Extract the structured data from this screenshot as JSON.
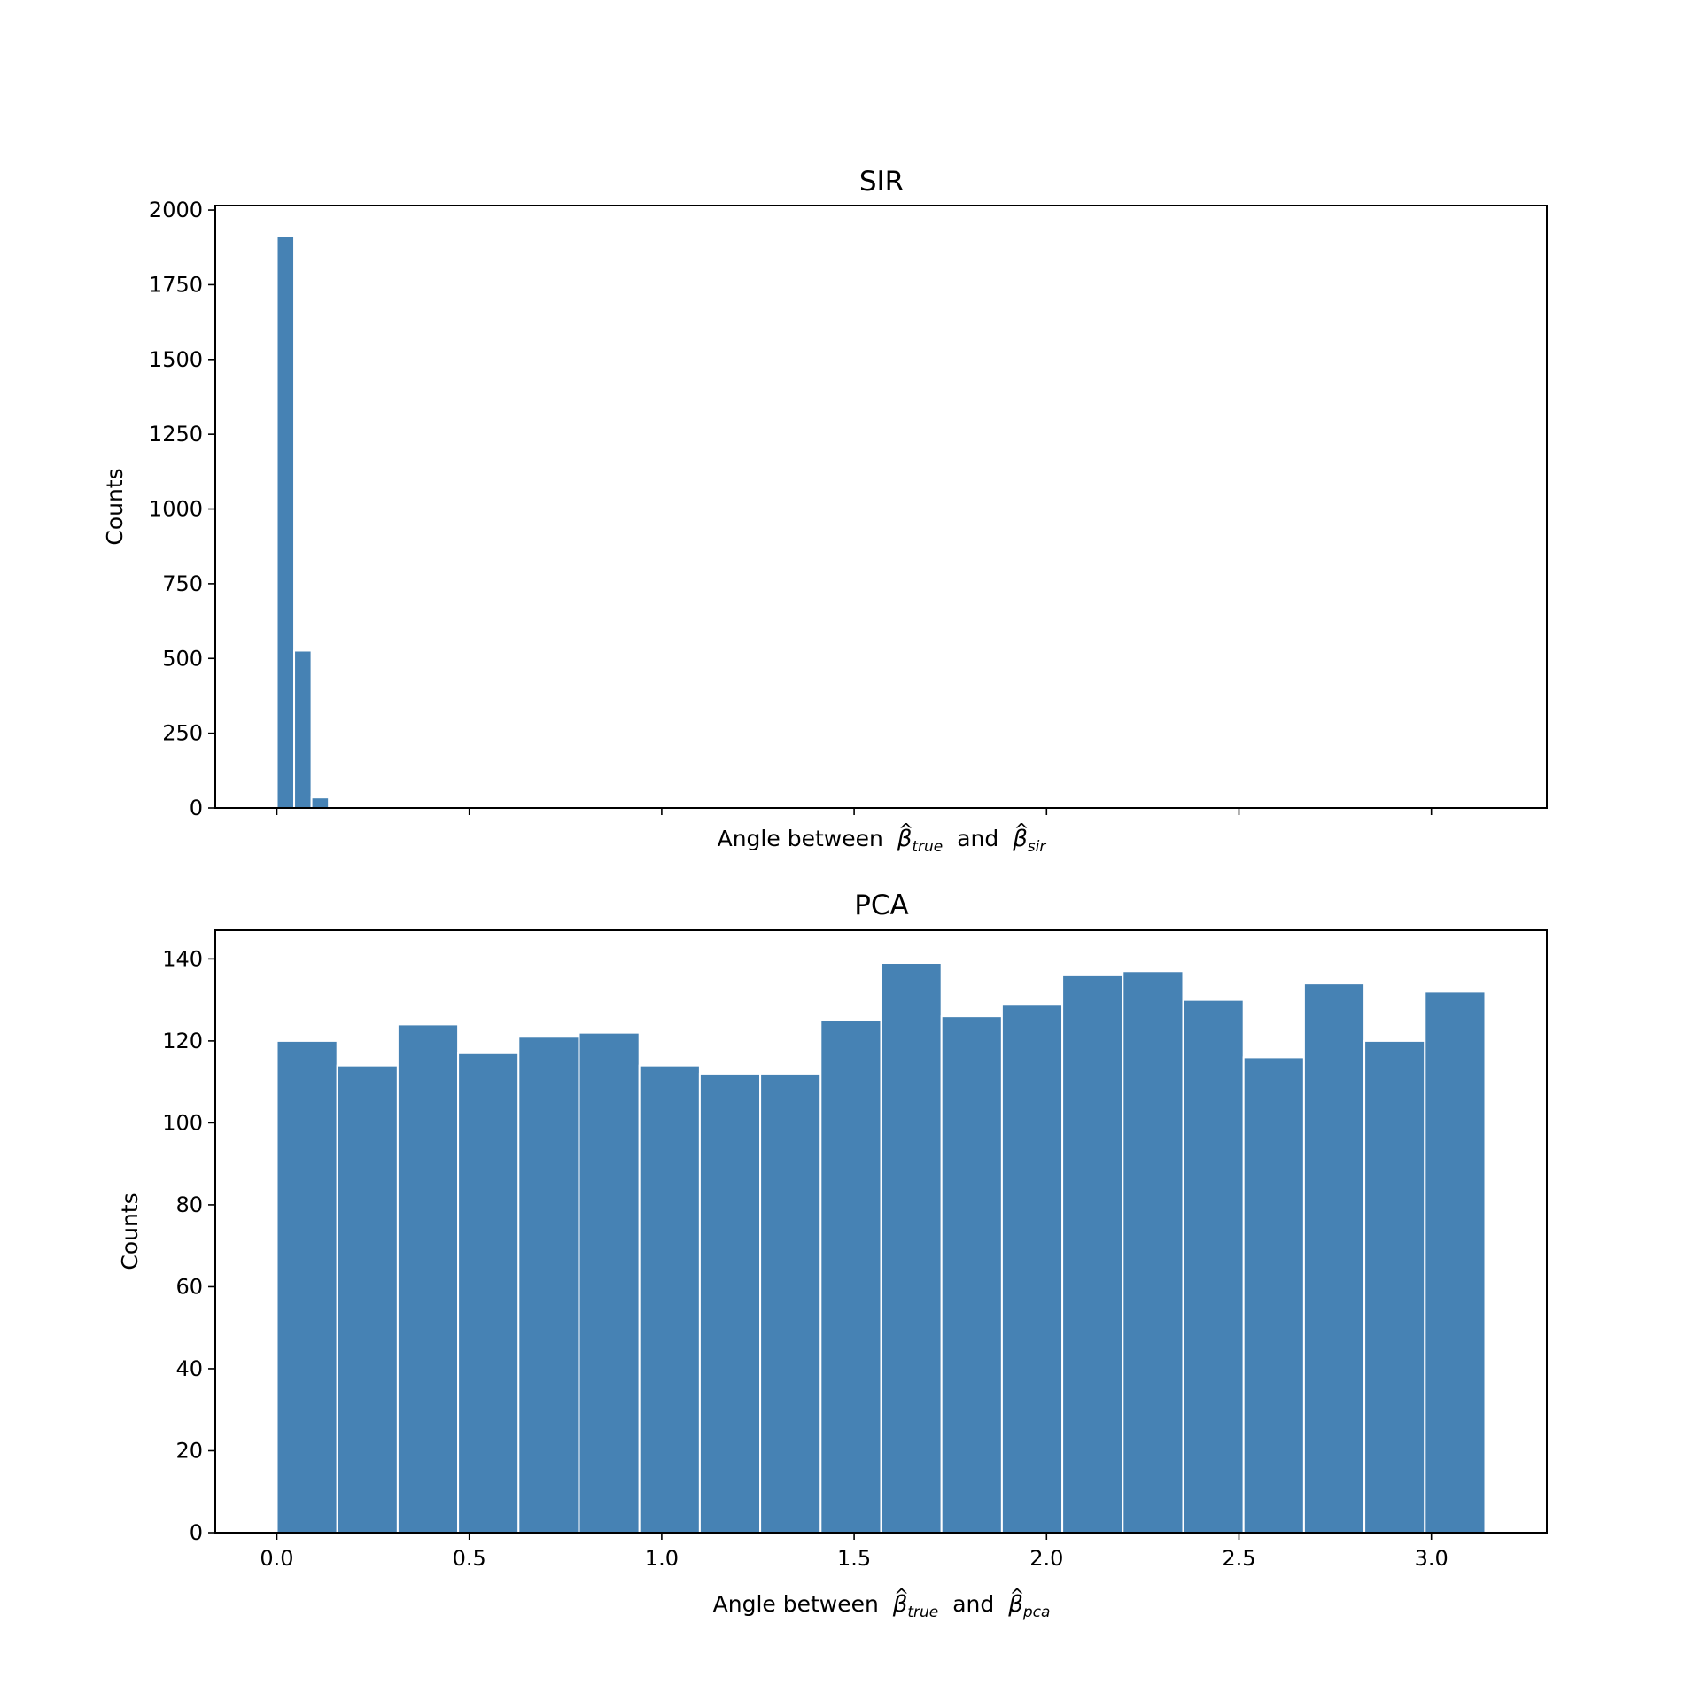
{
  "chart_data": [
    {
      "type": "bar",
      "title": "SIR",
      "ylabel": "Counts",
      "xlabel": {
        "prefix": "Angle between",
        "sym": "β",
        "hat": "^",
        "sub1": "true",
        "joiner": "and",
        "sub2": "sir"
      },
      "xlim": [
        -0.16,
        3.3
      ],
      "ylim": [
        0,
        2015
      ],
      "xticks": [
        0.0,
        0.5,
        1.0,
        1.5,
        2.0,
        2.5,
        3.0
      ],
      "xtick_labels_visible": false,
      "yticks": [
        0,
        250,
        500,
        750,
        1000,
        1250,
        1500,
        1750,
        2000
      ],
      "ytick_labels": [
        "0",
        "250",
        "500",
        "750",
        "1000",
        "1250",
        "1500",
        "1750",
        "2000"
      ],
      "bins": [
        [
          0.0,
          0.045
        ],
        [
          0.045,
          0.09
        ],
        [
          0.09,
          0.135
        ]
      ],
      "values": [
        1912,
        526,
        35
      ],
      "color": "#4682b4",
      "grid": false
    },
    {
      "type": "bar",
      "title": "PCA",
      "ylabel": "Counts",
      "xlabel": {
        "prefix": "Angle between",
        "sym": "β",
        "hat": "^",
        "sub1": "true",
        "joiner": "and",
        "sub2": "pca"
      },
      "xlim": [
        -0.16,
        3.3
      ],
      "ylim": [
        0,
        147
      ],
      "xticks": [
        0.0,
        0.5,
        1.0,
        1.5,
        2.0,
        2.5,
        3.0
      ],
      "xtick_labels": [
        "0.0",
        "0.5",
        "1.0",
        "1.5",
        "2.0",
        "2.5",
        "3.0"
      ],
      "xtick_labels_visible": true,
      "yticks": [
        0,
        20,
        40,
        60,
        80,
        100,
        120,
        140
      ],
      "ytick_labels": [
        "0",
        "20",
        "40",
        "60",
        "80",
        "100",
        "120",
        "140"
      ],
      "bin_start": 0.0,
      "bin_width": 0.157,
      "values": [
        120,
        114,
        124,
        117,
        121,
        122,
        114,
        112,
        112,
        125,
        139,
        126,
        129,
        136,
        137,
        130,
        116,
        134,
        120,
        132
      ],
      "color": "#4682b4",
      "grid": false
    }
  ]
}
